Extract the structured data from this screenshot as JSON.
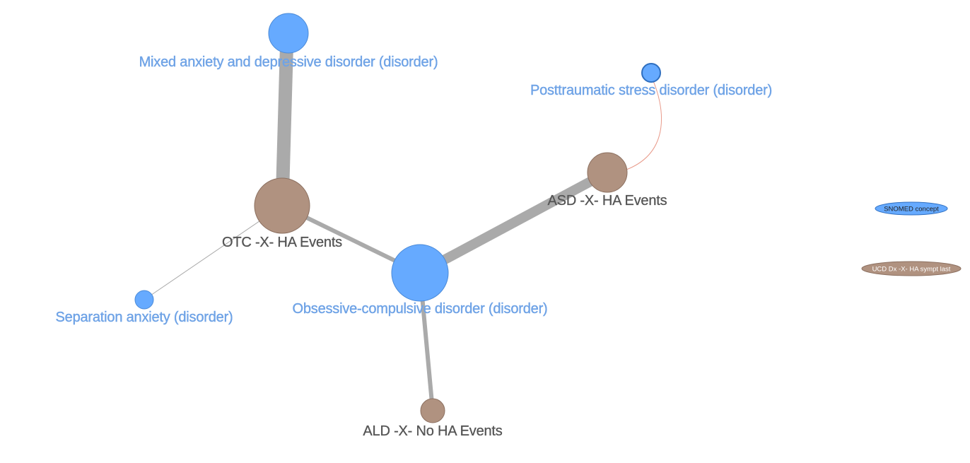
{
  "colors": {
    "concept_fill": "#66aaff",
    "concept_stroke": "#4a8ad8",
    "group_fill": "#b09280",
    "group_stroke": "#8c7060",
    "edge_gray": "#aaaaaa",
    "edge_highlight": "#e89a8a"
  },
  "nodes": {
    "mixed": {
      "label": "Mixed anxiety and depressive disorder (disorder)",
      "kind": "concept"
    },
    "ptsd": {
      "label": "Posttraumatic stress disorder (disorder)",
      "kind": "concept"
    },
    "otc": {
      "label": "OTC -X- HA Events",
      "kind": "group"
    },
    "asd": {
      "label": "ASD -X- HA Events",
      "kind": "group"
    },
    "ocd": {
      "label": "Obsessive-compulsive disorder (disorder)",
      "kind": "concept"
    },
    "sep": {
      "label": "Separation anxiety (disorder)",
      "kind": "concept"
    },
    "ald": {
      "label": "ALD -X- No HA Events",
      "kind": "group"
    }
  },
  "legend": {
    "concept": "SNOMED concept",
    "group": "UCD Dx -X- HA sympt last"
  }
}
